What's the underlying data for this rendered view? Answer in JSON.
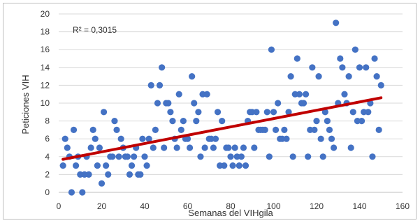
{
  "chart_data": {
    "type": "scatter",
    "xlabel": "Semanas del VIHgila",
    "ylabel": "Peticiones VIH",
    "xlim": [
      0,
      160
    ],
    "ylim": [
      0,
      20
    ],
    "x_ticks": [
      "0",
      "20",
      "40",
      "60",
      "80",
      "100",
      "120",
      "140",
      "160"
    ],
    "y_ticks": [
      "0",
      "2",
      "4",
      "6",
      "8",
      "10",
      "12",
      "14",
      "16",
      "18",
      "20"
    ],
    "grid": "horizontal",
    "annotation": "R² = 0,3015",
    "colors": {
      "points": "#4472c4",
      "trendline": "#c00000",
      "grid": "#d9d9d9"
    },
    "trendline": {
      "x": [
        2,
        150
      ],
      "y": [
        3.7,
        10.6
      ]
    },
    "points": [
      {
        "x": 2,
        "y": 3
      },
      {
        "x": 3,
        "y": 6
      },
      {
        "x": 4,
        "y": 5
      },
      {
        "x": 5,
        "y": 4
      },
      {
        "x": 6,
        "y": 0
      },
      {
        "x": 7,
        "y": 7
      },
      {
        "x": 8,
        "y": 3
      },
      {
        "x": 9,
        "y": 4
      },
      {
        "x": 10,
        "y": 2
      },
      {
        "x": 11,
        "y": 0
      },
      {
        "x": 12,
        "y": 2
      },
      {
        "x": 13,
        "y": 4
      },
      {
        "x": 14,
        "y": 2
      },
      {
        "x": 15,
        "y": 5
      },
      {
        "x": 16,
        "y": 7
      },
      {
        "x": 17,
        "y": 6
      },
      {
        "x": 18,
        "y": 3
      },
      {
        "x": 19,
        "y": 5
      },
      {
        "x": 20,
        "y": 1
      },
      {
        "x": 21,
        "y": 9
      },
      {
        "x": 22,
        "y": 3
      },
      {
        "x": 23,
        "y": 2
      },
      {
        "x": 24,
        "y": 4
      },
      {
        "x": 25,
        "y": 4
      },
      {
        "x": 26,
        "y": 8
      },
      {
        "x": 27,
        "y": 7
      },
      {
        "x": 28,
        "y": 4
      },
      {
        "x": 29,
        "y": 6
      },
      {
        "x": 30,
        "y": 5
      },
      {
        "x": 31,
        "y": 4
      },
      {
        "x": 32,
        "y": 4
      },
      {
        "x": 33,
        "y": 2
      },
      {
        "x": 34,
        "y": 3
      },
      {
        "x": 35,
        "y": 4
      },
      {
        "x": 36,
        "y": 5
      },
      {
        "x": 37,
        "y": 2
      },
      {
        "x": 38,
        "y": 2
      },
      {
        "x": 39,
        "y": 6
      },
      {
        "x": 40,
        "y": 4
      },
      {
        "x": 41,
        "y": 3
      },
      {
        "x": 42,
        "y": 6
      },
      {
        "x": 43,
        "y": 12
      },
      {
        "x": 44,
        "y": 5
      },
      {
        "x": 45,
        "y": 7
      },
      {
        "x": 46,
        "y": 10
      },
      {
        "x": 47,
        "y": 12
      },
      {
        "x": 48,
        "y": 14
      },
      {
        "x": 49,
        "y": 5
      },
      {
        "x": 50,
        "y": 10
      },
      {
        "x": 51,
        "y": 10
      },
      {
        "x": 52,
        "y": 9
      },
      {
        "x": 53,
        "y": 8
      },
      {
        "x": 54,
        "y": 6
      },
      {
        "x": 55,
        "y": 5
      },
      {
        "x": 56,
        "y": 11
      },
      {
        "x": 57,
        "y": 7
      },
      {
        "x": 58,
        "y": 8
      },
      {
        "x": 59,
        "y": 6
      },
      {
        "x": 60,
        "y": 6
      },
      {
        "x": 61,
        "y": 5
      },
      {
        "x": 62,
        "y": 13
      },
      {
        "x": 63,
        "y": 10
      },
      {
        "x": 64,
        "y": 8
      },
      {
        "x": 65,
        "y": 9
      },
      {
        "x": 66,
        "y": 4
      },
      {
        "x": 67,
        "y": 11
      },
      {
        "x": 68,
        "y": 5
      },
      {
        "x": 69,
        "y": 11
      },
      {
        "x": 70,
        "y": 6
      },
      {
        "x": 71,
        "y": 6
      },
      {
        "x": 72,
        "y": 5
      },
      {
        "x": 73,
        "y": 6
      },
      {
        "x": 74,
        "y": 9
      },
      {
        "x": 75,
        "y": 3
      },
      {
        "x": 76,
        "y": 8
      },
      {
        "x": 77,
        "y": 3
      },
      {
        "x": 78,
        "y": 5
      },
      {
        "x": 79,
        "y": 5
      },
      {
        "x": 80,
        "y": 4
      },
      {
        "x": 81,
        "y": 3
      },
      {
        "x": 82,
        "y": 5
      },
      {
        "x": 83,
        "y": 4
      },
      {
        "x": 84,
        "y": 3
      },
      {
        "x": 85,
        "y": 4
      },
      {
        "x": 86,
        "y": 5
      },
      {
        "x": 87,
        "y": 3
      },
      {
        "x": 88,
        "y": 8
      },
      {
        "x": 89,
        "y": 9
      },
      {
        "x": 90,
        "y": 9
      },
      {
        "x": 91,
        "y": 5
      },
      {
        "x": 92,
        "y": 9
      },
      {
        "x": 93,
        "y": 7
      },
      {
        "x": 94,
        "y": 7
      },
      {
        "x": 95,
        "y": 7
      },
      {
        "x": 96,
        "y": 7
      },
      {
        "x": 97,
        "y": 9
      },
      {
        "x": 98,
        "y": 4
      },
      {
        "x": 99,
        "y": 16
      },
      {
        "x": 100,
        "y": 9
      },
      {
        "x": 101,
        "y": 7
      },
      {
        "x": 102,
        "y": 10
      },
      {
        "x": 103,
        "y": 6
      },
      {
        "x": 104,
        "y": 6
      },
      {
        "x": 105,
        "y": 7
      },
      {
        "x": 106,
        "y": 6
      },
      {
        "x": 107,
        "y": 9
      },
      {
        "x": 108,
        "y": 13
      },
      {
        "x": 109,
        "y": 4
      },
      {
        "x": 110,
        "y": 11
      },
      {
        "x": 111,
        "y": 15
      },
      {
        "x": 112,
        "y": 11
      },
      {
        "x": 113,
        "y": 10
      },
      {
        "x": 114,
        "y": 10
      },
      {
        "x": 115,
        "y": 11
      },
      {
        "x": 116,
        "y": 4
      },
      {
        "x": 117,
        "y": 7
      },
      {
        "x": 118,
        "y": 14
      },
      {
        "x": 119,
        "y": 7
      },
      {
        "x": 120,
        "y": 8
      },
      {
        "x": 121,
        "y": 13
      },
      {
        "x": 122,
        "y": 6
      },
      {
        "x": 123,
        "y": 4
      },
      {
        "x": 124,
        "y": 9
      },
      {
        "x": 125,
        "y": 8
      },
      {
        "x": 126,
        "y": 7
      },
      {
        "x": 127,
        "y": 6
      },
      {
        "x": 128,
        "y": 5
      },
      {
        "x": 129,
        "y": 19
      },
      {
        "x": 130,
        "y": 10
      },
      {
        "x": 131,
        "y": 15
      },
      {
        "x": 132,
        "y": 14
      },
      {
        "x": 133,
        "y": 11
      },
      {
        "x": 134,
        "y": 10
      },
      {
        "x": 135,
        "y": 13
      },
      {
        "x": 136,
        "y": 5
      },
      {
        "x": 137,
        "y": 9
      },
      {
        "x": 138,
        "y": 16
      },
      {
        "x": 139,
        "y": 8
      },
      {
        "x": 140,
        "y": 14
      },
      {
        "x": 141,
        "y": 8
      },
      {
        "x": 142,
        "y": 9
      },
      {
        "x": 143,
        "y": 14
      },
      {
        "x": 144,
        "y": 9
      },
      {
        "x": 145,
        "y": 10
      },
      {
        "x": 146,
        "y": 4
      },
      {
        "x": 147,
        "y": 15
      },
      {
        "x": 148,
        "y": 13
      },
      {
        "x": 149,
        "y": 7
      },
      {
        "x": 150,
        "y": 12
      }
    ]
  }
}
